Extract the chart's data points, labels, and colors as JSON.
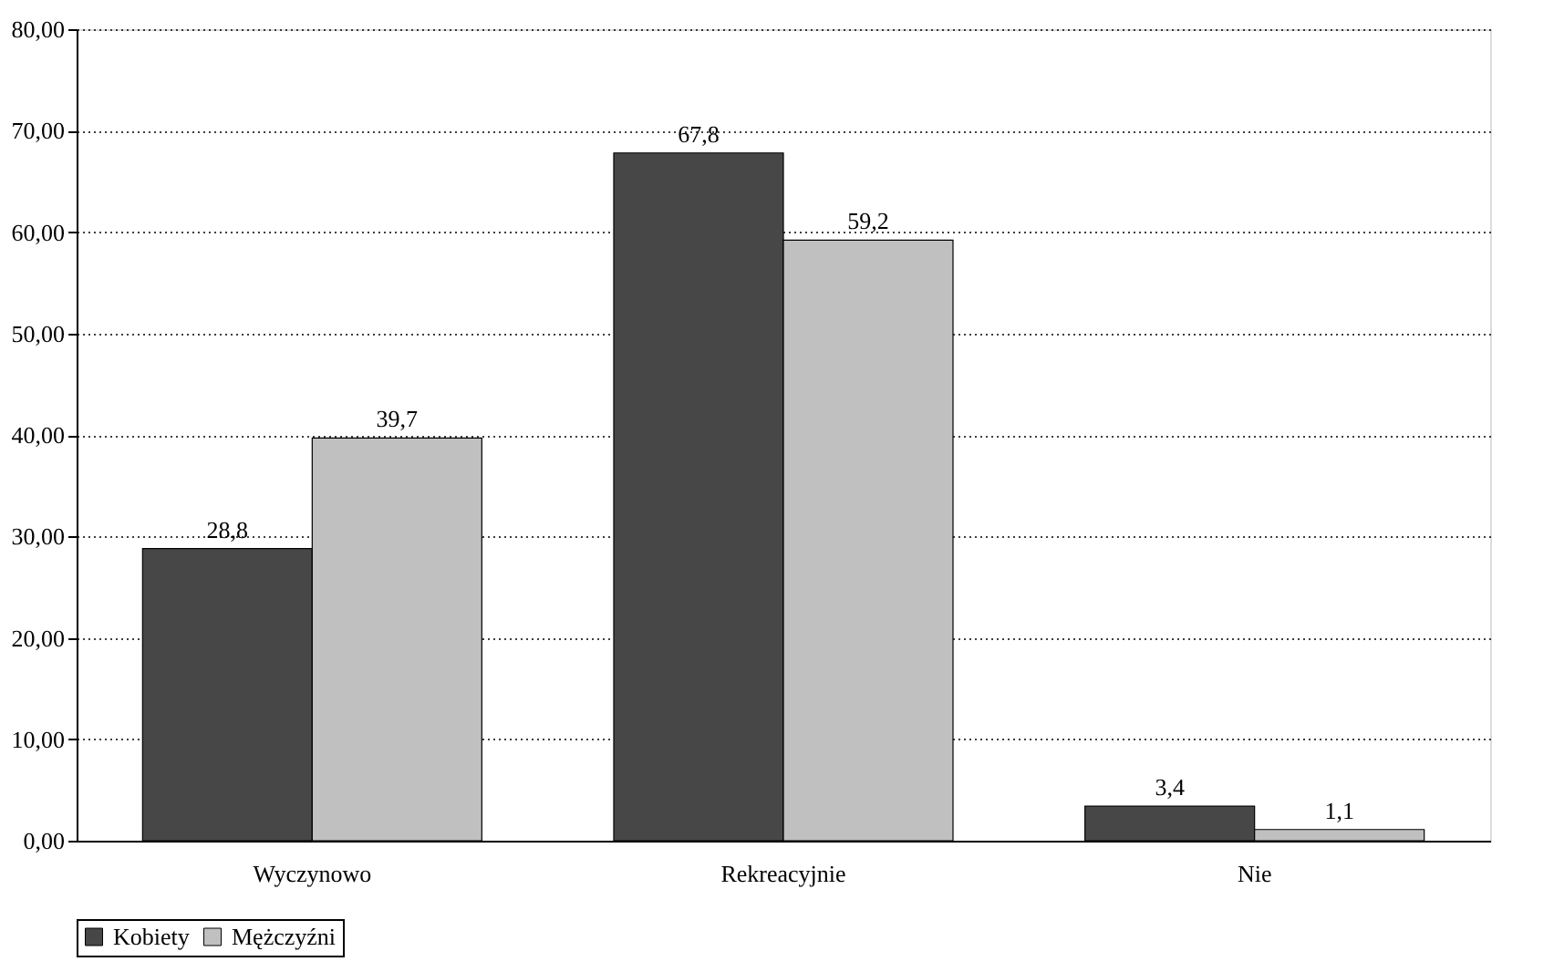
{
  "chart_data": {
    "type": "bar",
    "categories": [
      "Wyczynowo",
      "Rekreacyjnie",
      "Nie"
    ],
    "series": [
      {
        "name": "Kobiety",
        "color": "#474747",
        "values": [
          28.8,
          67.8,
          3.4
        ],
        "value_labels": [
          "28,8",
          "67,8",
          "3,4"
        ]
      },
      {
        "name": "Mężczyźni",
        "color": "#c0c0c0",
        "values": [
          39.7,
          59.2,
          1.1
        ],
        "value_labels": [
          "39,7",
          "59,2",
          "1,1"
        ]
      }
    ],
    "ylim": [
      0,
      80
    ],
    "yticks": [
      {
        "value": 0,
        "label": "0,00"
      },
      {
        "value": 10,
        "label": "10,00"
      },
      {
        "value": 20,
        "label": "20,00"
      },
      {
        "value": 30,
        "label": "30,00"
      },
      {
        "value": 40,
        "label": "40,00"
      },
      {
        "value": 50,
        "label": "50,00"
      },
      {
        "value": 60,
        "label": "60,00"
      },
      {
        "value": 70,
        "label": "70,00"
      },
      {
        "value": 80,
        "label": "80,00"
      }
    ],
    "grid": "y",
    "legend": "bottom"
  }
}
